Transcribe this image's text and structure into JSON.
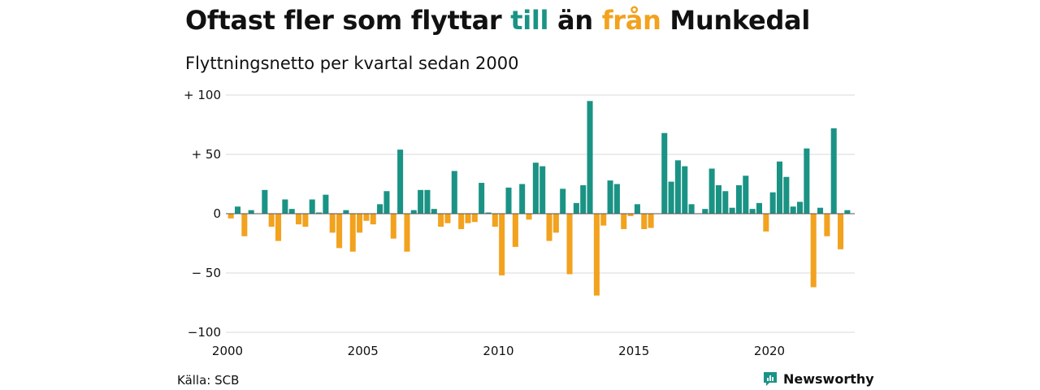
{
  "title": {
    "part1": "Oftast fler som flyttar ",
    "word_in": "till",
    "part2": " än ",
    "word_out": "från",
    "part3": " Munkedal"
  },
  "subtitle": "Flyttningsnetto per kvartal sedan 2000",
  "source": "Källa: SCB",
  "brand": {
    "name": "Newsworthy",
    "icon": "newsworthy-logo-icon"
  },
  "colors": {
    "positive": "#1a9385",
    "negative": "#f2a21e",
    "grid": "#d9d9d9",
    "brand": "#1a9385"
  },
  "chart_data": {
    "type": "bar",
    "title": "Oftast fler som flyttar till än från Munkedal",
    "subtitle": "Flyttningsnetto per kvartal sedan 2000",
    "x_start": "2000 Q1",
    "frequency": "quarterly",
    "ylim": [
      -100,
      100
    ],
    "yticks": [
      {
        "value": 100,
        "label": "+ 100"
      },
      {
        "value": 50,
        "label": "+  50"
      },
      {
        "value": 0,
        "label": "0"
      },
      {
        "value": -50,
        "label": "− 50"
      },
      {
        "value": -100,
        "label": "−100"
      }
    ],
    "xticks": [
      "2000",
      "2005",
      "2010",
      "2015",
      "2020"
    ],
    "grid": true,
    "values": [
      -4,
      6,
      -19,
      3,
      0,
      20,
      -11,
      -23,
      12,
      4,
      -9,
      -11,
      12,
      1,
      16,
      -16,
      -29,
      3,
      -32,
      -16,
      -6,
      -9,
      8,
      19,
      -21,
      54,
      -32,
      3,
      20,
      20,
      4,
      -11,
      -8,
      36,
      -13,
      -8,
      -7,
      26,
      1,
      -11,
      -52,
      22,
      -28,
      25,
      -5,
      43,
      40,
      -23,
      -16,
      21,
      -51,
      9,
      24,
      95,
      -69,
      -10,
      28,
      25,
      -13,
      -2,
      8,
      -13,
      -12,
      0,
      68,
      27,
      45,
      40,
      8,
      0,
      4,
      38,
      24,
      19,
      5,
      24,
      32,
      4,
      9,
      -15,
      18,
      44,
      31,
      6,
      10,
      55,
      -62,
      5,
      -19,
      72,
      -30,
      3
    ]
  }
}
